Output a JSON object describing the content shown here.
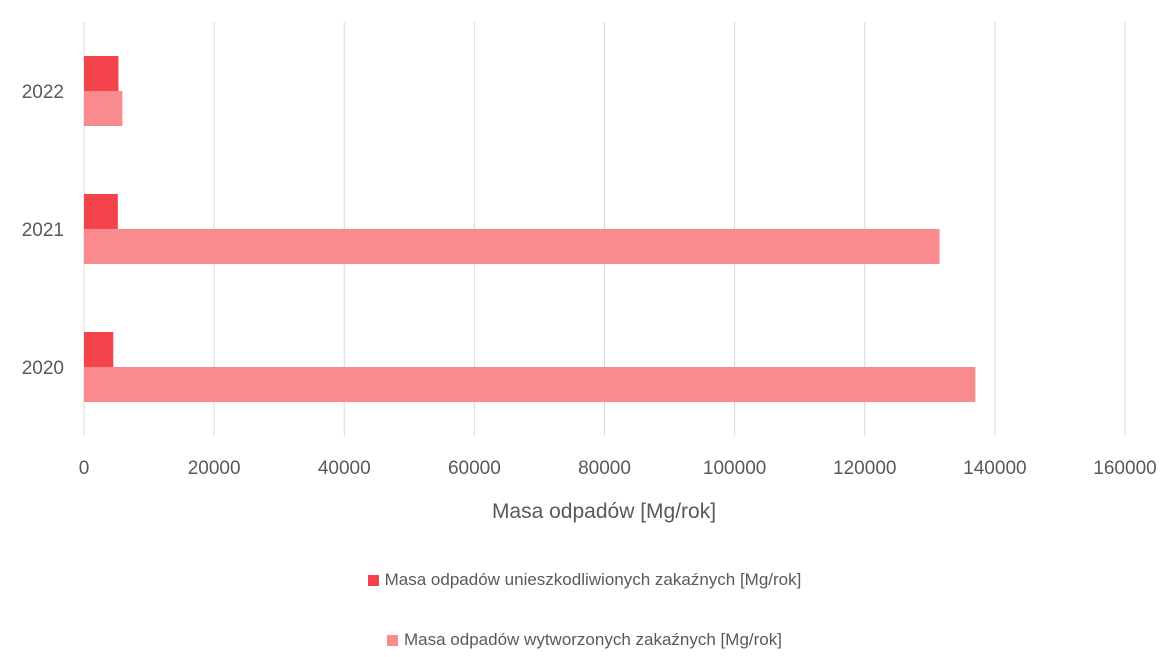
{
  "chart_data": {
    "type": "bar",
    "orientation": "horizontal",
    "categories": [
      "2020",
      "2021",
      "2022"
    ],
    "series": [
      {
        "name": "Masa odpadów unieszkodliwionych zakaźnych [Mg/rok]",
        "values": [
          4500,
          5200,
          5300
        ],
        "color": "#f5434b"
      },
      {
        "name": "Masa odpadów wytworzonych zakaźnych [Mg/rok]",
        "values": [
          137000,
          131500,
          5900
        ],
        "color": "#f98a8e"
      }
    ],
    "title": "",
    "xlabel": "Masa odpadów [Mg/rok]",
    "ylabel": "",
    "xlim": [
      0,
      160000
    ],
    "xticks": [
      "0",
      "20000",
      "40000",
      "60000",
      "80000",
      "100000",
      "120000",
      "140000",
      "160000"
    ],
    "grid": "vertical",
    "legend": "bottom"
  }
}
